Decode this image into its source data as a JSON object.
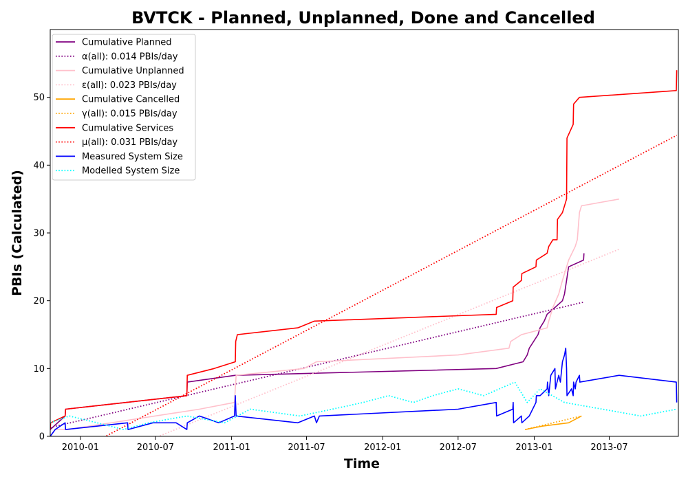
{
  "chart_data": {
    "type": "line",
    "title": "BVTCK - Planned, Unplanned, Done  and Cancelled",
    "xlabel": "Time",
    "ylabel": "PBIs (Calculated)",
    "x_ticks": [
      "2010-01",
      "2010-07",
      "2011-01",
      "2011-07",
      "2012-01",
      "2012-07",
      "2013-01",
      "2013-07"
    ],
    "y_ticks": [
      "0",
      "10",
      "20",
      "30",
      "40",
      "50"
    ],
    "xlim": [
      "2009-10-20",
      "2013-12-15"
    ],
    "ylim": [
      0,
      60
    ],
    "grid": false,
    "legend_position": "upper-left",
    "series": [
      {
        "name": "Cumulative Planned",
        "color": "#800080",
        "style": "solid",
        "points": [
          [
            "2009-10-20",
            1
          ],
          [
            "2009-11-25",
            3
          ],
          [
            "2009-11-26",
            4
          ],
          [
            "2010-09-15",
            6
          ],
          [
            "2010-09-16",
            8
          ],
          [
            "2011-01-10",
            9
          ],
          [
            "2012-10-01",
            10
          ],
          [
            "2012-12-05",
            11
          ],
          [
            "2012-12-15",
            12
          ],
          [
            "2012-12-20",
            13
          ],
          [
            "2013-01-10",
            15
          ],
          [
            "2013-01-15",
            16
          ],
          [
            "2013-01-25",
            17
          ],
          [
            "2013-02-01",
            18
          ],
          [
            "2013-02-20",
            19
          ],
          [
            "2013-03-10",
            20
          ],
          [
            "2013-03-15",
            21
          ],
          [
            "2013-03-20",
            23
          ],
          [
            "2013-03-25",
            25
          ],
          [
            "2013-04-30",
            26
          ],
          [
            "2013-05-01",
            27
          ]
        ]
      },
      {
        "name": "α(all): 0.014 PBIs/day",
        "color": "#800080",
        "style": "dotted",
        "points": [
          [
            "2009-10-20",
            1.3
          ],
          [
            "2013-05-01",
            19.8
          ]
        ]
      },
      {
        "name": "Cumulative Unplanned",
        "color": "#ffc0cb",
        "style": "solid",
        "points": [
          [
            "2009-10-20",
            0
          ],
          [
            "2009-11-01",
            1
          ],
          [
            "2009-12-01",
            1
          ],
          [
            "2010-10-15",
            4
          ],
          [
            "2011-01-08",
            5
          ],
          [
            "2011-01-12",
            9
          ],
          [
            "2011-06-25",
            10
          ],
          [
            "2011-07-25",
            11
          ],
          [
            "2012-07-01",
            12
          ],
          [
            "2012-11-01",
            13
          ],
          [
            "2012-11-05",
            14
          ],
          [
            "2012-12-01",
            15
          ],
          [
            "2013-02-01",
            16
          ],
          [
            "2013-02-05",
            17
          ],
          [
            "2013-02-15",
            19
          ],
          [
            "2013-03-01",
            21
          ],
          [
            "2013-03-10",
            23
          ],
          [
            "2013-03-25",
            26
          ],
          [
            "2013-04-10",
            28
          ],
          [
            "2013-04-15",
            29
          ],
          [
            "2013-04-20",
            33
          ],
          [
            "2013-04-25",
            34
          ],
          [
            "2013-07-25",
            35
          ]
        ]
      },
      {
        "name": "ε(all): 0.023 PBIs/day",
        "color": "#ffc0cb",
        "style": "dotted",
        "points": [
          [
            "2009-10-20",
            -6.5
          ],
          [
            "2013-07-25",
            27.6
          ]
        ]
      },
      {
        "name": "Cumulative Cancelled",
        "color": "#ffa500",
        "style": "solid",
        "points": [
          [
            "2012-12-10",
            1
          ],
          [
            "2013-01-20",
            1.5
          ],
          [
            "2013-03-25",
            2
          ],
          [
            "2013-04-25",
            3
          ]
        ]
      },
      {
        "name": "γ(all): 0.015 PBIs/day",
        "color": "#ffa500",
        "style": "dotted",
        "points": [
          [
            "2012-12-10",
            1
          ],
          [
            "2013-04-25",
            3
          ]
        ]
      },
      {
        "name": "Cumulative Services",
        "color": "#ff0000",
        "style": "solid",
        "points": [
          [
            "2009-10-20",
            1
          ],
          [
            "2009-10-21",
            2
          ],
          [
            "2009-11-25",
            3
          ],
          [
            "2009-11-26",
            4
          ],
          [
            "2010-09-15",
            6
          ],
          [
            "2010-09-16",
            9
          ],
          [
            "2010-11-20",
            10
          ],
          [
            "2011-01-10",
            11
          ],
          [
            "2011-01-11",
            14
          ],
          [
            "2011-01-15",
            15
          ],
          [
            "2011-06-10",
            16
          ],
          [
            "2011-07-20",
            17
          ],
          [
            "2012-10-01",
            18
          ],
          [
            "2012-10-02",
            19
          ],
          [
            "2012-11-10",
            20
          ],
          [
            "2012-11-11",
            22
          ],
          [
            "2012-12-01",
            23
          ],
          [
            "2012-12-02",
            24
          ],
          [
            "2013-01-05",
            25
          ],
          [
            "2013-01-06",
            26
          ],
          [
            "2013-02-01",
            27
          ],
          [
            "2013-02-05",
            28
          ],
          [
            "2013-02-15",
            29
          ],
          [
            "2013-02-25",
            29
          ],
          [
            "2013-02-26",
            32
          ],
          [
            "2013-03-10",
            33
          ],
          [
            "2013-03-20",
            35
          ],
          [
            "2013-03-21",
            44
          ],
          [
            "2013-04-05",
            46
          ],
          [
            "2013-04-06",
            49
          ],
          [
            "2013-04-20",
            50
          ],
          [
            "2013-12-10",
            51
          ],
          [
            "2013-12-11",
            54
          ]
        ]
      },
      {
        "name": "μ(all): 0.031 PBIs/day",
        "color": "#ff0000",
        "style": "dotted",
        "points": [
          [
            "2009-10-20",
            -4.3
          ],
          [
            "2013-12-11",
            44.4
          ]
        ]
      },
      {
        "name": "Measured System Size",
        "color": "#0000ff",
        "style": "solid",
        "points": [
          [
            "2009-10-20",
            0
          ],
          [
            "2009-11-01",
            1
          ],
          [
            "2009-11-25",
            2
          ],
          [
            "2009-11-26",
            1
          ],
          [
            "2010-04-25",
            2
          ],
          [
            "2010-04-26",
            1
          ],
          [
            "2010-06-25",
            2
          ],
          [
            "2010-08-20",
            2
          ],
          [
            "2010-09-15",
            1
          ],
          [
            "2010-09-16",
            2
          ],
          [
            "2010-10-15",
            3
          ],
          [
            "2010-12-01",
            2
          ],
          [
            "2011-01-08",
            3
          ],
          [
            "2011-01-10",
            6
          ],
          [
            "2011-01-12",
            3
          ],
          [
            "2011-06-10",
            2
          ],
          [
            "2011-07-20",
            3
          ],
          [
            "2011-07-25",
            2
          ],
          [
            "2011-08-01",
            3
          ],
          [
            "2012-07-01",
            4
          ],
          [
            "2012-10-01",
            5
          ],
          [
            "2012-10-02",
            3
          ],
          [
            "2012-11-10",
            4
          ],
          [
            "2012-11-11",
            5
          ],
          [
            "2012-11-12",
            2
          ],
          [
            "2012-12-01",
            3
          ],
          [
            "2012-12-02",
            2
          ],
          [
            "2012-12-20",
            3
          ],
          [
            "2013-01-05",
            5
          ],
          [
            "2013-01-06",
            6
          ],
          [
            "2013-01-15",
            6
          ],
          [
            "2013-02-01",
            7
          ],
          [
            "2013-02-02",
            8
          ],
          [
            "2013-02-05",
            6
          ],
          [
            "2013-02-10",
            9
          ],
          [
            "2013-02-20",
            10
          ],
          [
            "2013-02-21",
            7
          ],
          [
            "2013-03-01",
            9
          ],
          [
            "2013-03-05",
            8
          ],
          [
            "2013-03-10",
            11
          ],
          [
            "2013-03-15",
            12
          ],
          [
            "2013-03-18",
            13
          ],
          [
            "2013-03-20",
            10
          ],
          [
            "2013-03-21",
            6
          ],
          [
            "2013-04-01",
            7
          ],
          [
            "2013-04-05",
            6
          ],
          [
            "2013-04-06",
            8
          ],
          [
            "2013-04-10",
            7
          ],
          [
            "2013-04-12",
            8
          ],
          [
            "2013-04-20",
            9
          ],
          [
            "2013-04-21",
            8
          ],
          [
            "2013-07-25",
            9
          ],
          [
            "2013-12-10",
            8
          ],
          [
            "2013-12-11",
            5
          ]
        ]
      },
      {
        "name": "Modelled System Size",
        "color": "#00ffff",
        "style": "dotted",
        "points": [
          [
            "2009-10-20",
            2
          ],
          [
            "2009-12-05",
            3
          ],
          [
            "2010-02-10",
            2
          ],
          [
            "2010-04-15",
            1
          ],
          [
            "2010-06-15",
            2
          ],
          [
            "2010-09-15",
            3
          ],
          [
            "2010-12-15",
            2
          ],
          [
            "2011-02-15",
            4
          ],
          [
            "2011-06-15",
            3
          ],
          [
            "2011-09-01",
            4
          ],
          [
            "2011-11-15",
            5
          ],
          [
            "2012-01-15",
            6
          ],
          [
            "2012-03-15",
            5
          ],
          [
            "2012-05-01",
            6
          ],
          [
            "2012-07-01",
            7
          ],
          [
            "2012-09-01",
            6
          ],
          [
            "2012-11-15",
            8
          ],
          [
            "2012-12-15",
            5
          ],
          [
            "2013-01-15",
            7
          ],
          [
            "2013-03-15",
            5
          ],
          [
            "2013-06-15",
            4
          ],
          [
            "2013-09-15",
            3
          ],
          [
            "2013-12-11",
            4
          ]
        ]
      }
    ]
  }
}
